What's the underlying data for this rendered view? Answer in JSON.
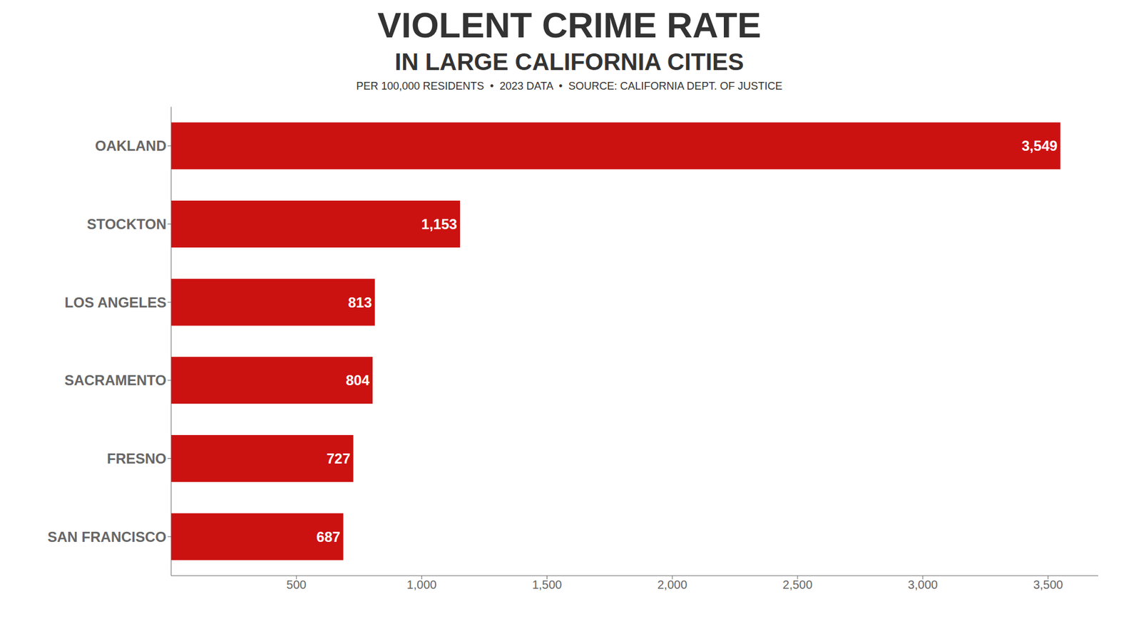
{
  "chart_data": {
    "type": "bar",
    "orientation": "horizontal",
    "title": "VIOLENT CRIME RATE",
    "subtitle": "IN LARGE CALIFORNIA CITIES",
    "annotations": [
      "PER 100,000 RESIDENTS  •  2023 DATA  •  SOURCE: CALIFORNIA DEPT. OF JUSTICE"
    ],
    "categories": [
      "OAKLAND",
      "STOCKTON",
      "LOS ANGELES",
      "SACRAMENTO",
      "FRESNO",
      "SAN FRANCISCO"
    ],
    "values": [
      3549,
      1153,
      813,
      804,
      727,
      687
    ],
    "value_labels": [
      "3,549",
      "1,153",
      "813",
      "804",
      "727",
      "687"
    ],
    "data_labels": true,
    "color": "#cc1111",
    "xlim": [
      0,
      3700
    ],
    "xticks": [
      500,
      {
        "value": 1000,
        "label": "1,000"
      },
      {
        "value": 1500,
        "label": "1,500"
      },
      {
        "value": 2000,
        "label": "2,000"
      },
      {
        "value": 2500,
        "label": "2,500"
      },
      {
        "value": 3000,
        "label": "3,000"
      },
      {
        "value": 3500,
        "label": "3,500"
      }
    ],
    "grid": false
  }
}
